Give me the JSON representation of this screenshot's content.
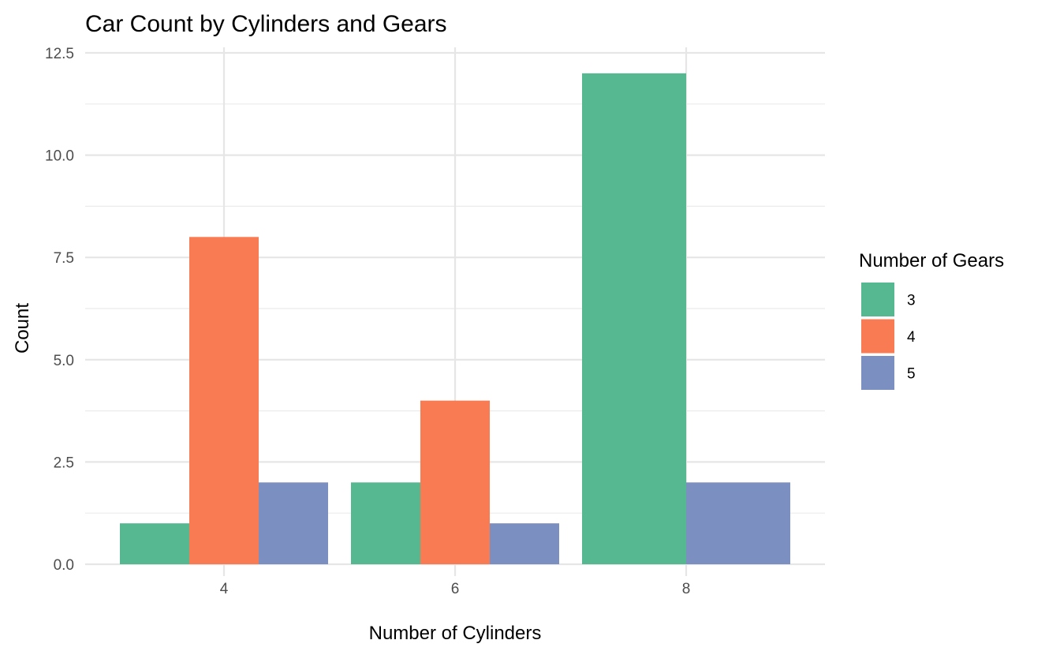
{
  "chart_data": {
    "type": "bar",
    "title": "Car Count by Cylinders and Gears",
    "xlabel": "Number of Cylinders",
    "ylabel": "Count",
    "categories": [
      "4",
      "6",
      "8"
    ],
    "series": [
      {
        "name": "3",
        "color": "#56B891",
        "values": [
          1,
          2,
          12
        ]
      },
      {
        "name": "4",
        "color": "#F87B53",
        "values": [
          8,
          4,
          null
        ]
      },
      {
        "name": "5",
        "color": "#7B8FC0",
        "values": [
          2,
          1,
          2
        ]
      }
    ],
    "ylim": [
      0,
      12.5
    ],
    "yticks": [
      "0.0",
      "2.5",
      "5.0",
      "7.5",
      "10.0",
      "12.5"
    ],
    "ytick_values": [
      0,
      2.5,
      5,
      7.5,
      10,
      12.5
    ],
    "grid": true,
    "legend": {
      "title": "Number of Gears",
      "position": "right"
    }
  }
}
